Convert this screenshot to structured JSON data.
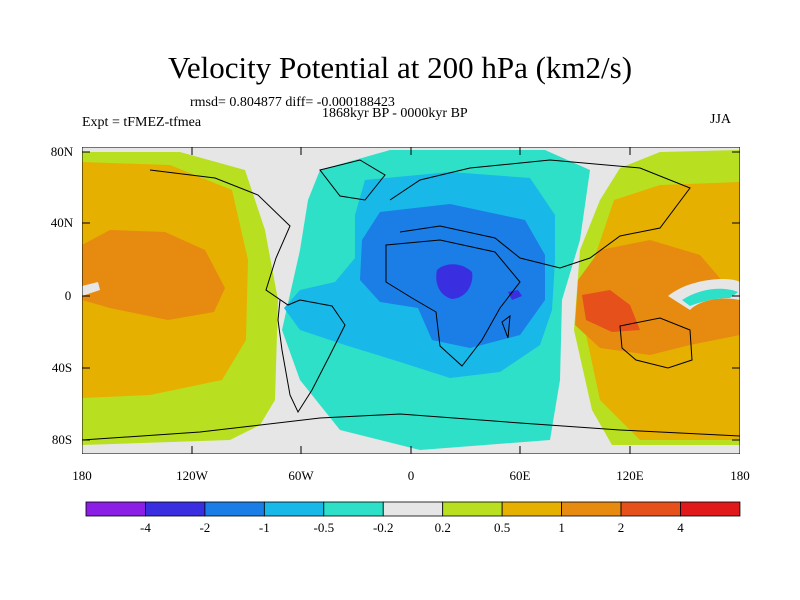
{
  "title": "Velocity Potential at 200 hPa (km2/s)",
  "rmsd_line": "rmsd= 0.804877 diff= -0.000188423",
  "period": "1868kyr BP - 0000kyr BP",
  "experiment": "Expt = tFMEZ-tfmea",
  "season": "JJA",
  "lat_labels": [
    "80N",
    "40N",
    "0",
    "40S",
    "80S"
  ],
  "lon_labels": [
    "180",
    "120W",
    "60W",
    "0",
    "60E",
    "120E",
    "180"
  ],
  "colorbar": {
    "labels": [
      "-4",
      "-2",
      "-1",
      "-0.5",
      "-0.2",
      "0.2",
      "0.5",
      "1",
      "2",
      "4"
    ],
    "colors": [
      "#8c1fe6",
      "#3a2fe0",
      "#1a7ee6",
      "#18b8e8",
      "#2ee0c8",
      "#e6e6e6",
      "#b8e020",
      "#e6b000",
      "#e68a10",
      "#e6501a",
      "#e01a1a"
    ]
  }
}
